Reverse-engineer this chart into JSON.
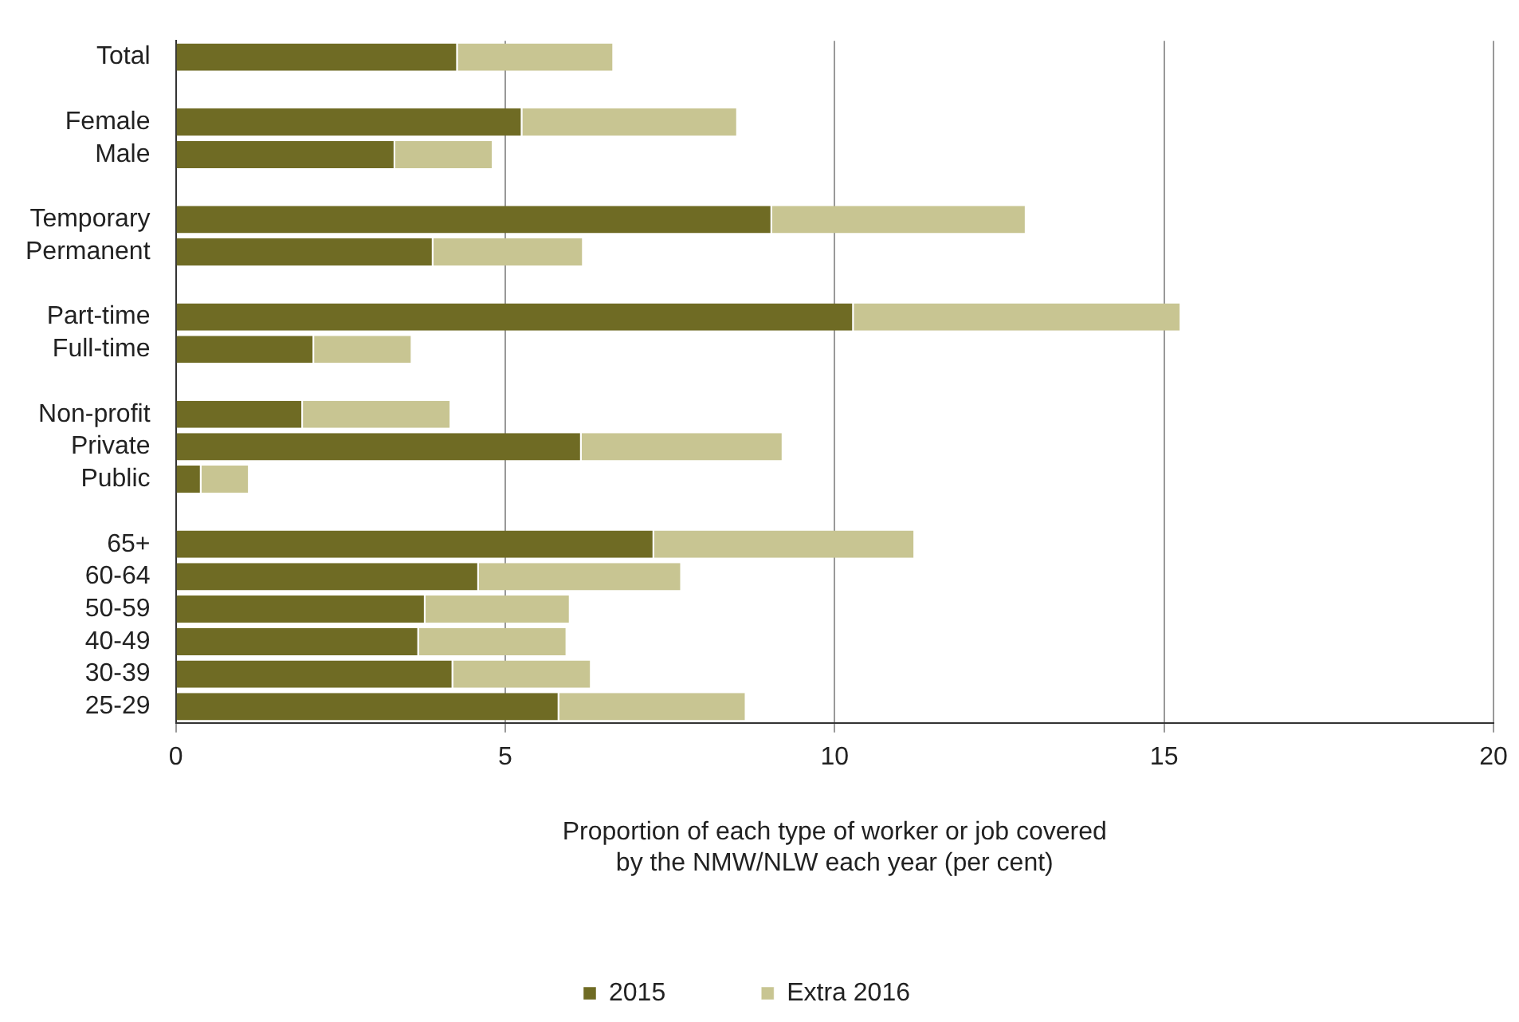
{
  "chart_data": {
    "type": "bar",
    "orientation": "horizontal",
    "stacked": true,
    "categories": [
      "Total",
      null,
      "Female",
      "Male",
      null,
      "Temporary",
      "Permanent",
      null,
      "Part-time",
      "Full-time",
      null,
      "Non-profit",
      "Private",
      "Public",
      null,
      "65+",
      "60-64",
      "50-59",
      "40-49",
      "30-39",
      "25-29"
    ],
    "series": [
      {
        "name": "2015",
        "color": "#6f6b24",
        "values": [
          4.28,
          null,
          5.26,
          3.33,
          null,
          9.05,
          3.91,
          null,
          10.29,
          2.1,
          null,
          1.93,
          6.16,
          0.39,
          null,
          7.26,
          4.6,
          3.79,
          3.69,
          4.21,
          5.82
        ]
      },
      {
        "name": "Extra 2016",
        "color": "#c8c592",
        "values": [
          2.37,
          null,
          3.27,
          1.49,
          null,
          3.86,
          2.28,
          null,
          4.97,
          1.49,
          null,
          2.25,
          3.06,
          0.73,
          null,
          3.96,
          3.08,
          2.2,
          2.25,
          2.1,
          2.84
        ]
      }
    ],
    "xlabel": "Proportion of each type of worker or job covered\nby the NMW/NLW each year (per cent)",
    "xlim": [
      0,
      20
    ],
    "xticks": [
      0,
      5,
      10,
      15,
      20
    ],
    "grid": "x",
    "legend": "bottom"
  }
}
